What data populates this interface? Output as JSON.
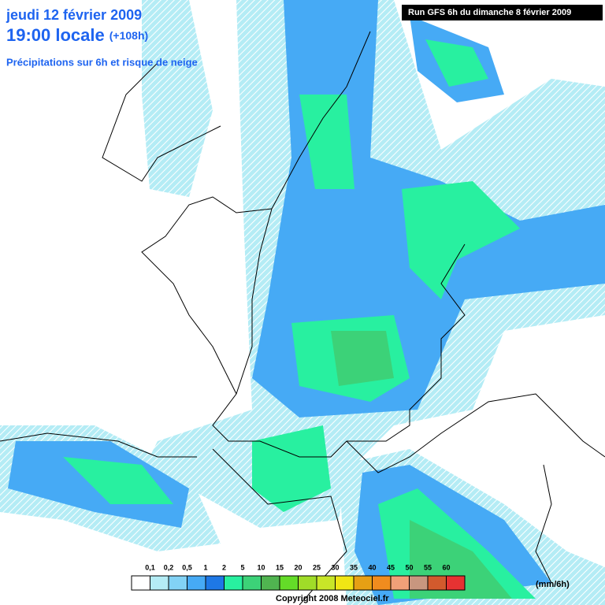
{
  "header": {
    "date": "jeudi 12 février 2009",
    "time": "19:00 locale",
    "lead": "(+108h)",
    "subtitle": "Précipitations sur 6h et risque de neige",
    "run": "Run GFS 6h du dimanche 8 février 2009"
  },
  "legend": {
    "labels": [
      "0,1",
      "0,2",
      "0,5",
      "1",
      "2",
      "5",
      "10",
      "15",
      "20",
      "25",
      "30",
      "35",
      "40",
      "45",
      "50",
      "55",
      "60"
    ],
    "colors": [
      "#ffffff",
      "#b4ecf5",
      "#82d2f5",
      "#46aaf5",
      "#1e78e6",
      "#28f0a0",
      "#3cd278",
      "#50b450",
      "#64dc28",
      "#a0dc28",
      "#c8e628",
      "#f0e614",
      "#e6a014",
      "#f08c1e",
      "#f0a078",
      "#c8967f",
      "#d25a2d",
      "#e63232"
    ],
    "unit": "(mm/6h)"
  },
  "footer": {
    "copyright": "Copyright 2008 Meteociel.fr"
  }
}
